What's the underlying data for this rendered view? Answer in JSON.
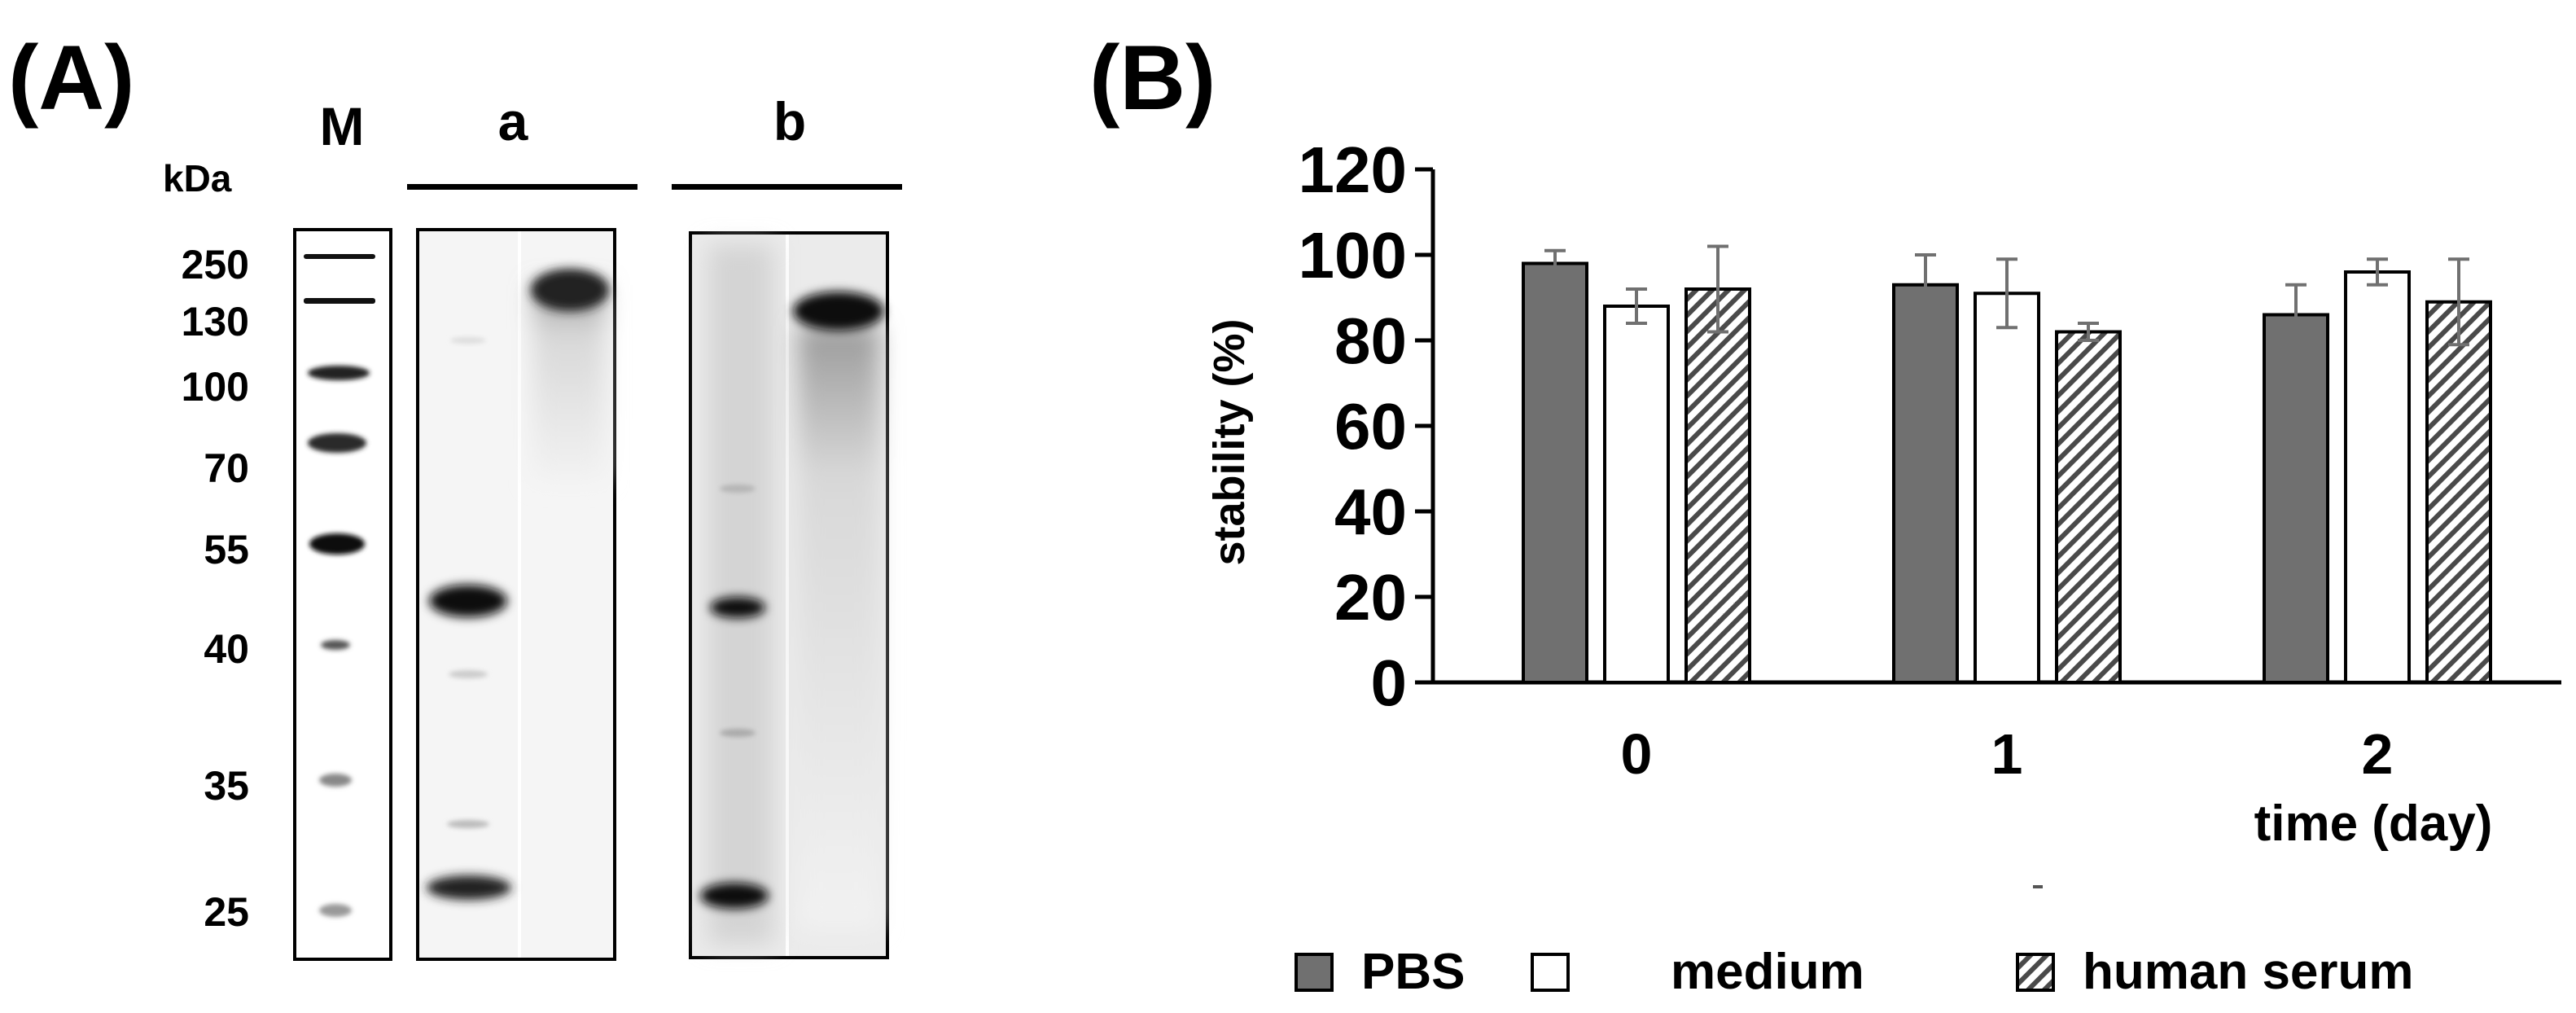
{
  "panels": {
    "a": {
      "label": "(A)"
    },
    "b": {
      "label": "(B)"
    }
  },
  "gel": {
    "lanes": {
      "marker": "M",
      "a": "a",
      "b": "b"
    },
    "unit": "kDa",
    "markers": [
      "250",
      "130",
      "100",
      "70",
      "55",
      "40",
      "35",
      "25"
    ]
  },
  "chart_data": {
    "type": "bar",
    "title": "",
    "xlabel": "time (day)",
    "ylabel": "stability (%)",
    "ylim": [
      0,
      120
    ],
    "yticks": [
      0,
      20,
      40,
      60,
      80,
      100,
      120
    ],
    "categories": [
      "0",
      "1",
      "2"
    ],
    "series": [
      {
        "name": "PBS",
        "values": [
          98,
          93,
          86
        ],
        "errors": [
          3,
          7,
          7
        ],
        "fill": "#707070",
        "pattern": "solid"
      },
      {
        "name": "medium",
        "values": [
          88,
          91,
          96
        ],
        "errors": [
          4,
          8,
          3
        ],
        "fill": "#ffffff",
        "pattern": "none"
      },
      {
        "name": "human serum",
        "values": [
          92,
          82,
          89
        ],
        "errors": [
          10,
          2,
          10
        ],
        "fill": "#ffffff",
        "pattern": "hatch"
      }
    ],
    "grid": false,
    "legend": "bottom",
    "error_bar_color": "#707070"
  }
}
